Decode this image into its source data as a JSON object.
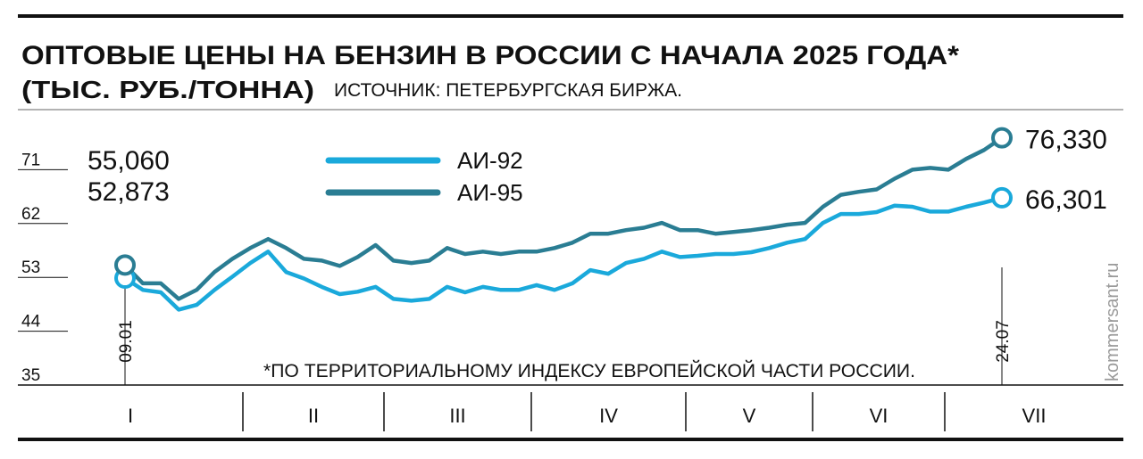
{
  "chart_data": {
    "type": "line",
    "title": "ОПТОВЫЕ ЦЕНЫ НА БЕНЗИН В РОССИИ С НАЧАЛА 2025 ГОДА*",
    "subtitle": "(ТЫС. РУБ./ТОННА)",
    "source": "ИСТОЧНИК: ПЕТЕРБУРГСКАЯ БИРЖА.",
    "footnote": "*ПО ТЕРРИТОРИАЛЬНОМУ ИНДЕКСУ ЕВРОПЕЙСКОЙ ЧАСТИ РОССИИ.",
    "watermark": "kommersant.ru",
    "months": [
      "I",
      "II",
      "III",
      "IV",
      "V",
      "VI",
      "VII"
    ],
    "categories": [
      "09.01",
      null,
      null,
      null,
      null,
      null,
      null,
      null,
      null,
      null,
      null,
      null,
      null,
      null,
      null,
      null,
      null,
      null,
      null,
      null,
      null,
      null,
      null,
      null,
      null,
      null,
      null,
      null,
      null,
      null,
      null,
      null,
      null,
      null,
      null,
      null,
      null,
      null,
      null,
      null,
      null,
      null,
      null,
      null,
      null,
      null,
      null,
      null,
      null,
      "24.07"
    ],
    "ylim": [
      35,
      80
    ],
    "yticks": [
      35,
      44,
      53,
      62,
      71
    ],
    "series": [
      {
        "name": "АИ-92",
        "color": "#1aa9db",
        "values": [
          52.873,
          50.9,
          50.5,
          47.6,
          48.4,
          50.9,
          53.1,
          55.4,
          57.3,
          53.9,
          52.8,
          51.4,
          50.2,
          50.6,
          51.4,
          49.4,
          49.1,
          49.4,
          51.4,
          50.5,
          51.4,
          50.9,
          50.9,
          51.7,
          50.9,
          52.0,
          54.2,
          53.6,
          55.4,
          56.1,
          57.3,
          56.4,
          56.6,
          56.9,
          56.9,
          57.2,
          57.9,
          58.8,
          59.4,
          62.1,
          63.6,
          63.6,
          63.9,
          65.0,
          64.8,
          64.0,
          64.0,
          64.8,
          65.5,
          66.301
        ],
        "value_labels": [
          "52,873",
          null,
          null,
          null,
          null,
          null,
          null,
          null,
          null,
          null,
          null,
          null,
          null,
          null,
          null,
          null,
          null,
          null,
          null,
          null,
          null,
          null,
          null,
          null,
          null,
          null,
          null,
          null,
          null,
          null,
          null,
          null,
          null,
          null,
          null,
          null,
          null,
          null,
          null,
          null,
          null,
          null,
          null,
          null,
          null,
          null,
          null,
          null,
          null,
          "66,301"
        ]
      },
      {
        "name": "АИ-95",
        "color": "#2a7d93",
        "values": [
          55.06,
          52.0,
          52.0,
          49.4,
          50.9,
          53.9,
          56.1,
          57.9,
          59.4,
          57.9,
          56.1,
          55.8,
          54.9,
          56.4,
          58.4,
          55.8,
          55.4,
          55.8,
          57.9,
          56.9,
          57.3,
          56.9,
          57.3,
          57.3,
          57.9,
          58.8,
          60.3,
          60.3,
          60.9,
          61.3,
          62.1,
          60.9,
          60.9,
          60.3,
          60.6,
          60.9,
          61.3,
          61.8,
          62.1,
          64.8,
          66.8,
          67.3,
          67.7,
          69.5,
          71.0,
          71.3,
          71.0,
          72.8,
          74.3,
          76.33
        ],
        "value_labels": [
          "55,060",
          null,
          null,
          null,
          null,
          null,
          null,
          null,
          null,
          null,
          null,
          null,
          null,
          null,
          null,
          null,
          null,
          null,
          null,
          null,
          null,
          null,
          null,
          null,
          null,
          null,
          null,
          null,
          null,
          null,
          null,
          null,
          null,
          null,
          null,
          null,
          null,
          null,
          null,
          null,
          null,
          null,
          null,
          null,
          null,
          null,
          null,
          null,
          null,
          "76,330"
        ]
      }
    ]
  }
}
